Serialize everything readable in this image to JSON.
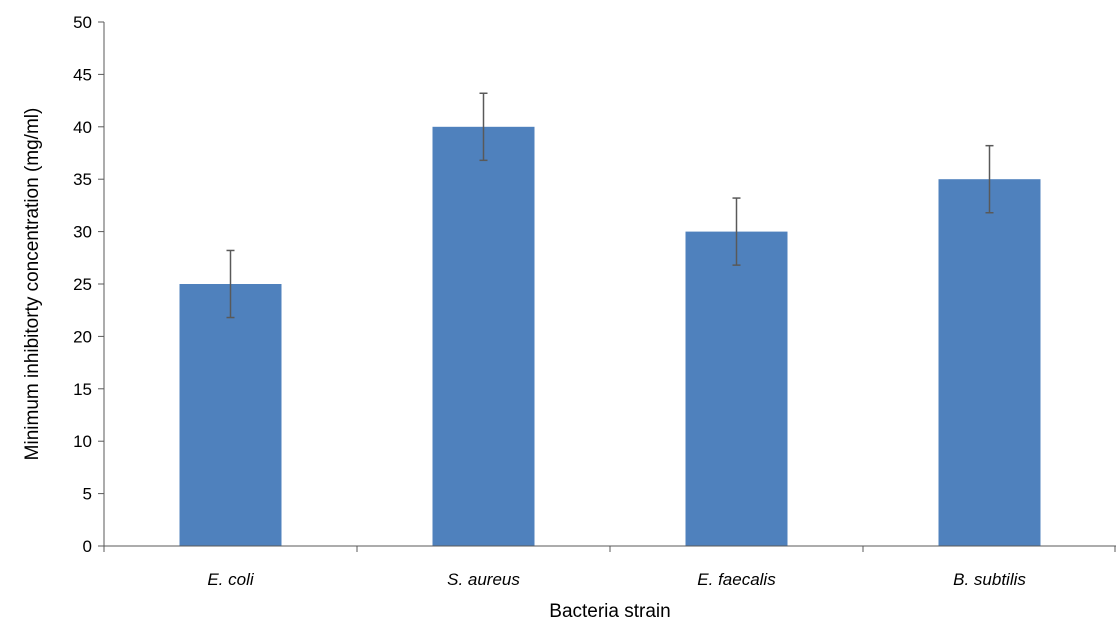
{
  "chart_data": {
    "type": "bar",
    "title": "",
    "xlabel": "Bacteria strain",
    "ylabel": "Minimum inhibitorty concentration (mg/ml)",
    "categories": [
      "E. coli",
      "S. aureus",
      "E. faecalis",
      "B. subtilis"
    ],
    "values": [
      25,
      40,
      30,
      35
    ],
    "error_bars": [
      3.2,
      3.2,
      3.2,
      3.2
    ],
    "ylim": [
      0,
      50
    ],
    "yticks": [
      0,
      5,
      10,
      15,
      20,
      25,
      30,
      35,
      40,
      45,
      50
    ],
    "grid": false,
    "legend": "none",
    "bar_color": "#4F81BD",
    "error_bar_color": "#595959"
  }
}
